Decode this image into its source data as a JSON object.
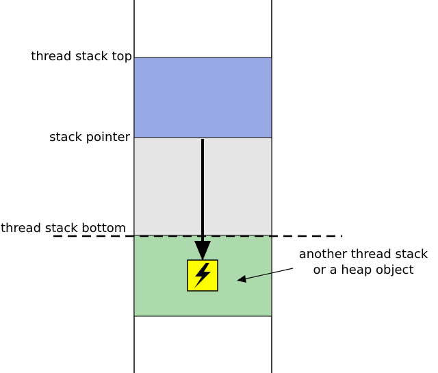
{
  "labels": {
    "stack_top": "thread stack top",
    "stack_pointer": "stack pointer",
    "stack_bottom": "thread stack bottom",
    "other_region_line1": "another thread stack",
    "other_region_line2": "or a heap object"
  },
  "regions": {
    "thread_stack_used": {
      "fill": "#99a9e6"
    },
    "thread_stack_free": {
      "fill": "#e5e5e5"
    },
    "other_region": {
      "fill": "#acdaac"
    }
  },
  "icons": {
    "overflow": {
      "name": "lightning-bolt-icon",
      "fill": "#ffff00",
      "bolt_color": "#000000"
    }
  },
  "colors": {
    "stroke": "#000000"
  }
}
